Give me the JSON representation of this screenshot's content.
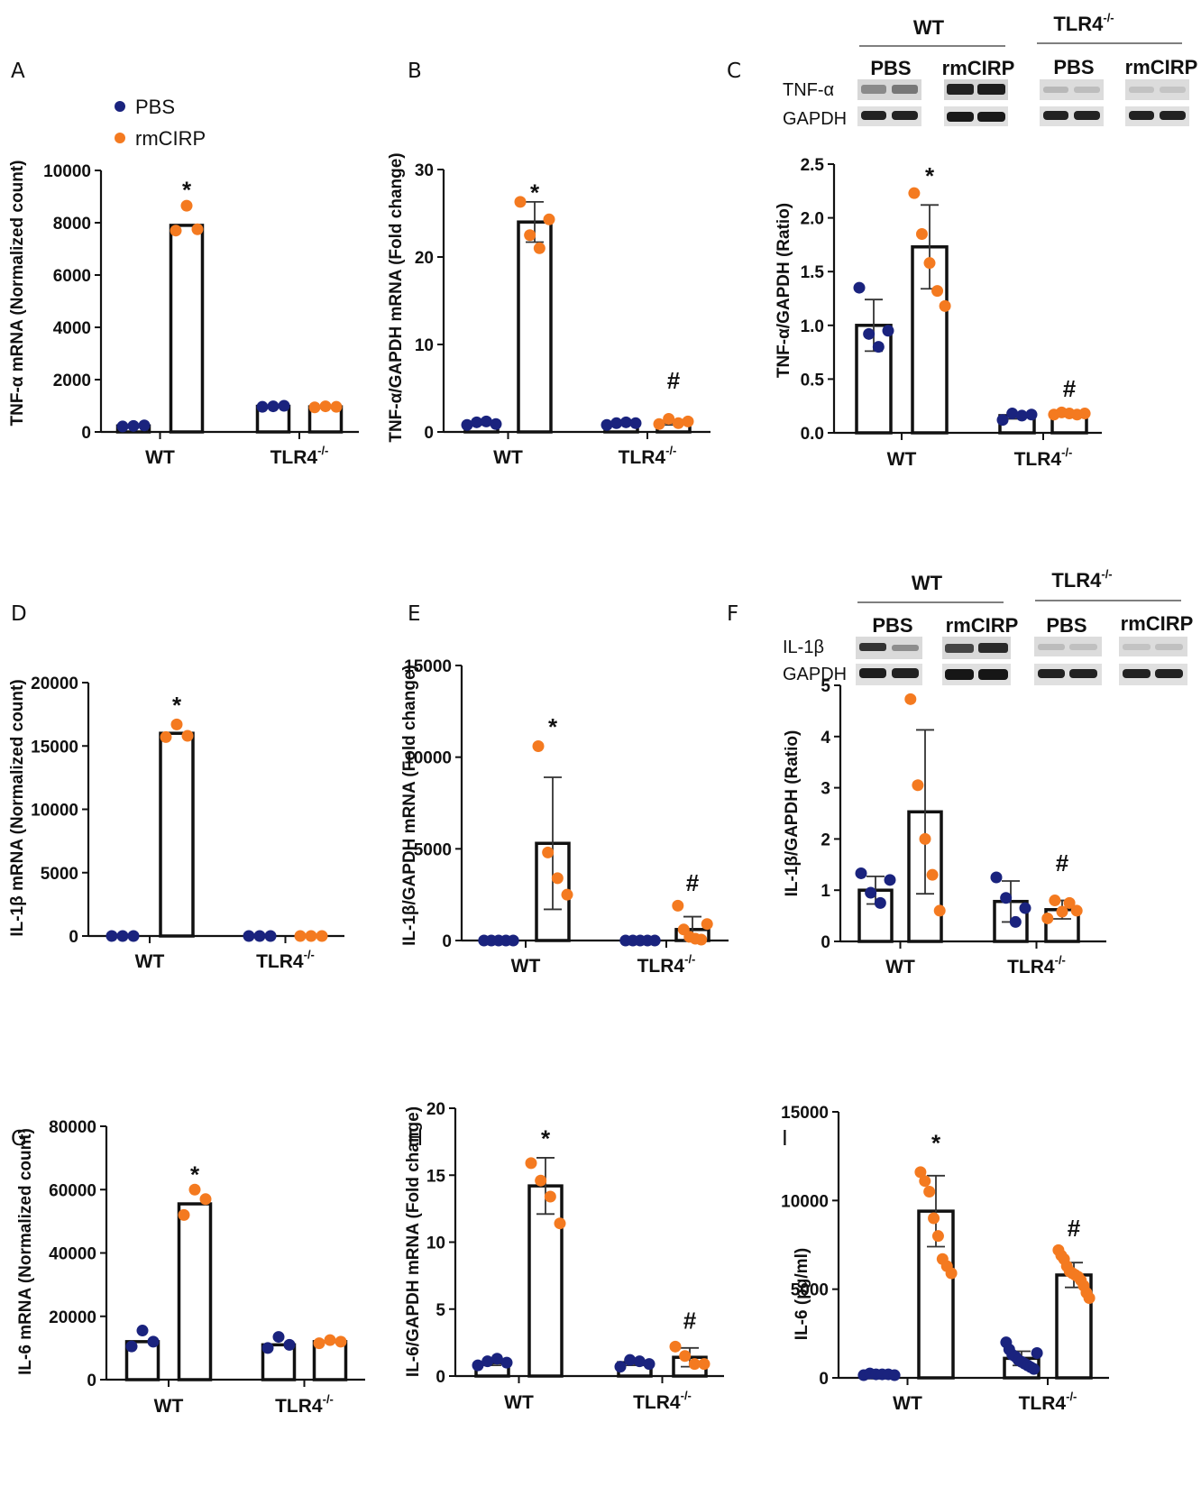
{
  "legend": {
    "pbs_label": "PBS",
    "rmcirp_label": "rmCIRP",
    "pbs_color": "#1a237e",
    "rmcirp_color": "#f47a20"
  },
  "western_blots": [
    {
      "panel": "C",
      "group_wt": "WT",
      "group_tlr4": "TLR4",
      "group_tlr4_sup": "-/-",
      "lane_labels": [
        "PBS",
        "rmCIRP",
        "PBS",
        "rmCIRP"
      ],
      "row_target": "TNF-α",
      "row_control": "GAPDH"
    },
    {
      "panel": "F",
      "group_wt": "WT",
      "group_tlr4": "TLR4",
      "group_tlr4_sup": "-/-",
      "lane_labels": [
        "PBS",
        "rmCIRP",
        "PBS",
        "rmCIRP"
      ],
      "row_target": "IL-1β",
      "row_control": "GAPDH"
    }
  ],
  "chart_data": [
    {
      "panel": "A",
      "type": "bar",
      "ylabel": "TNF-α mRNA (Normalized count)",
      "ylim": [
        0,
        10000
      ],
      "yticks": [
        "0",
        "2000",
        "4000",
        "6000",
        "8000",
        "10000"
      ],
      "categories": [
        "WT",
        "TLR4"
      ],
      "category_sup": [
        "",
        "-/-"
      ],
      "series": [
        {
          "name": "PBS",
          "values": [
            230,
            980
          ],
          "points": [
            [
              210,
              230,
              250
            ],
            [
              960,
              980,
              1000
            ]
          ],
          "error": [
            0,
            0
          ]
        },
        {
          "name": "rmCIRP",
          "values": [
            7900,
            960
          ],
          "points": [
            [
              7700,
              8650,
              7750
            ],
            [
              940,
              980,
              960
            ]
          ],
          "error": [
            0,
            0
          ]
        }
      ],
      "annotations": [
        {
          "text": "*",
          "series": "rmCIRP",
          "category": 0,
          "value": 9300
        }
      ]
    },
    {
      "panel": "B",
      "type": "bar",
      "ylabel": "TNF-α/GAPDH mRNA (Fold change)",
      "ylim": [
        0,
        30
      ],
      "yticks": [
        "0",
        "10",
        "20",
        "30"
      ],
      "categories": [
        "WT",
        "TLR4"
      ],
      "category_sup": [
        "",
        "-/-"
      ],
      "series": [
        {
          "name": "PBS",
          "values": [
            1.0,
            1.0
          ],
          "points": [
            [
              0.8,
              1.1,
              1.2,
              0.9
            ],
            [
              0.8,
              1.0,
              1.1,
              1.0
            ]
          ],
          "error": [
            0.2,
            0.15
          ]
        },
        {
          "name": "rmCIRP",
          "values": [
            24.0,
            1.1
          ],
          "points": [
            [
              26.3,
              22.5,
              21.0,
              24.3
            ],
            [
              0.9,
              1.5,
              1.0,
              1.2
            ]
          ],
          "error": [
            2.3,
            0.3
          ]
        }
      ],
      "annotations": [
        {
          "text": "*",
          "series": "rmCIRP",
          "category": 0,
          "value": 27.5
        },
        {
          "text": "#",
          "series": "rmCIRP",
          "category": 1,
          "value": 6.0
        }
      ]
    },
    {
      "panel": "C",
      "type": "bar",
      "ylabel": "TNF-α/GAPDH (Ratio)",
      "ylim": [
        0,
        2.5
      ],
      "yticks": [
        "0.0",
        "0.5",
        "1.0",
        "1.5",
        "2.0",
        "2.5"
      ],
      "categories": [
        "WT",
        "TLR4"
      ],
      "category_sup": [
        "",
        "-/-"
      ],
      "series": [
        {
          "name": "PBS",
          "values": [
            1.0,
            0.16
          ],
          "points": [
            [
              1.35,
              0.92,
              0.8,
              0.95
            ],
            [
              0.12,
              0.18,
              0.16,
              0.17
            ]
          ],
          "error": [
            0.24,
            0.03
          ]
        },
        {
          "name": "rmCIRP",
          "values": [
            1.73,
            0.18
          ],
          "points": [
            [
              2.23,
              1.85,
              1.58,
              1.32,
              1.18
            ],
            [
              0.17,
              0.19,
              0.18,
              0.17,
              0.18
            ]
          ],
          "error": [
            0.39,
            0.02
          ]
        }
      ],
      "annotations": [
        {
          "text": "*",
          "series": "rmCIRP",
          "category": 0,
          "value": 2.4
        },
        {
          "text": "#",
          "series": "rmCIRP",
          "category": 1,
          "value": 0.42
        }
      ]
    },
    {
      "panel": "D",
      "type": "bar",
      "ylabel": "IL-1β mRNA (Normalized count)",
      "ylim": [
        0,
        20000
      ],
      "yticks": [
        "0",
        "5000",
        "10000",
        "15000",
        "20000"
      ],
      "categories": [
        "WT",
        "TLR4"
      ],
      "category_sup": [
        "",
        "-/-"
      ],
      "series": [
        {
          "name": "PBS",
          "values": [
            0,
            0
          ],
          "points": [
            [
              0,
              0,
              0
            ],
            [
              0,
              0,
              0
            ]
          ],
          "error": [
            0,
            0
          ]
        },
        {
          "name": "rmCIRP",
          "values": [
            16000,
            0
          ],
          "points": [
            [
              15700,
              16700,
              15800
            ],
            [
              0,
              0,
              0
            ]
          ],
          "error": [
            0,
            0
          ]
        }
      ],
      "annotations": [
        {
          "text": "*",
          "series": "rmCIRP",
          "category": 0,
          "value": 18300
        }
      ]
    },
    {
      "panel": "E",
      "type": "bar",
      "ylabel": "IL-1β/GAPDH mRNA (Fold change)",
      "ylim": [
        0,
        15000
      ],
      "yticks": [
        "0",
        "5000",
        "10000",
        "15000"
      ],
      "categories": [
        "WT",
        "TLR4"
      ],
      "category_sup": [
        "",
        "-/-"
      ],
      "series": [
        {
          "name": "PBS",
          "values": [
            0,
            0
          ],
          "points": [
            [
              0,
              0,
              0,
              0,
              0
            ],
            [
              0,
              0,
              0,
              0,
              0
            ]
          ],
          "error": [
            0,
            0
          ]
        },
        {
          "name": "rmCIRP",
          "values": [
            5300,
            600
          ],
          "points": [
            [
              10600,
              4800,
              3400,
              2500
            ],
            [
              1900,
              600,
              200,
              100,
              50,
              900
            ]
          ],
          "error": [
            3600,
            700
          ]
        }
      ],
      "annotations": [
        {
          "text": "*",
          "series": "rmCIRP",
          "category": 0,
          "value": 11700
        },
        {
          "text": "#",
          "series": "rmCIRP",
          "category": 1,
          "value": 3200
        }
      ]
    },
    {
      "panel": "F",
      "type": "bar",
      "ylabel": "IL-1β/GAPDH (Ratio)",
      "ylim": [
        0,
        5
      ],
      "yticks": [
        "0",
        "1",
        "2",
        "3",
        "4",
        "5"
      ],
      "categories": [
        "WT",
        "TLR4"
      ],
      "category_sup": [
        "",
        "-/-"
      ],
      "series": [
        {
          "name": "PBS",
          "values": [
            1.0,
            0.78
          ],
          "points": [
            [
              1.33,
              0.95,
              0.75,
              1.2
            ],
            [
              1.25,
              0.85,
              0.38,
              0.65
            ]
          ],
          "error": [
            0.27,
            0.4
          ]
        },
        {
          "name": "rmCIRP",
          "values": [
            2.53,
            0.62
          ],
          "points": [
            [
              4.73,
              3.05,
              2.0,
              1.3,
              0.6
            ],
            [
              0.45,
              0.8,
              0.58,
              0.75,
              0.6
            ]
          ],
          "error": [
            1.6,
            0.18
          ]
        }
      ],
      "annotations": [
        {
          "text": "#",
          "series": "rmCIRP",
          "category": 1,
          "value": 1.55
        }
      ]
    },
    {
      "panel": "G",
      "type": "bar",
      "ylabel": "IL-6 mRNA (Normalized count)",
      "ylim": [
        0,
        80000
      ],
      "yticks": [
        "0",
        "20000",
        "40000",
        "60000",
        "80000"
      ],
      "categories": [
        "WT",
        "TLR4"
      ],
      "category_sup": [
        "",
        "-/-"
      ],
      "series": [
        {
          "name": "PBS",
          "values": [
            12000,
            11000
          ],
          "points": [
            [
              10500,
              15500,
              12000
            ],
            [
              10000,
              13500,
              11000
            ]
          ],
          "error": [
            0,
            0
          ]
        },
        {
          "name": "rmCIRP",
          "values": [
            55500,
            12000
          ],
          "points": [
            [
              52000,
              60000,
              57000
            ],
            [
              11500,
              12500,
              12000
            ]
          ],
          "error": [
            0,
            0
          ]
        }
      ],
      "annotations": [
        {
          "text": "*",
          "series": "rmCIRP",
          "category": 0,
          "value": 65000
        }
      ]
    },
    {
      "panel": "H",
      "type": "bar",
      "ylabel": "IL-6/GAPDH mRNA (Fold change)",
      "ylim": [
        0,
        20
      ],
      "yticks": [
        "0",
        "5",
        "10",
        "15",
        "20"
      ],
      "categories": [
        "WT",
        "TLR4"
      ],
      "category_sup": [
        "",
        "-/-"
      ],
      "series": [
        {
          "name": "PBS",
          "values": [
            1.0,
            1.0
          ],
          "points": [
            [
              0.8,
              1.1,
              1.3,
              1.0
            ],
            [
              0.7,
              1.2,
              1.1,
              0.9
            ]
          ],
          "error": [
            0.2,
            0.2
          ]
        },
        {
          "name": "rmCIRP",
          "values": [
            14.2,
            1.4
          ],
          "points": [
            [
              15.9,
              14.6,
              13.4,
              11.4
            ],
            [
              2.2,
              1.5,
              0.9,
              0.9
            ]
          ],
          "error": [
            2.1,
            0.7
          ]
        }
      ],
      "annotations": [
        {
          "text": "*",
          "series": "rmCIRP",
          "category": 0,
          "value": 17.8
        },
        {
          "text": "#",
          "series": "rmCIRP",
          "category": 1,
          "value": 4.2
        }
      ]
    },
    {
      "panel": "I",
      "type": "bar",
      "ylabel": "IL-6 (pg/ml)",
      "ylim": [
        0,
        15000
      ],
      "yticks": [
        "0",
        "5000",
        "10000",
        "15000"
      ],
      "categories": [
        "WT",
        "TLR4"
      ],
      "category_sup": [
        "",
        "-/-"
      ],
      "series": [
        {
          "name": "PBS",
          "values": [
            200,
            1100
          ],
          "points": [
            [
              150,
              250,
              200,
              200,
              200,
              150
            ],
            [
              2000,
              1600,
              1300,
              1200,
              1000,
              900,
              800,
              700,
              600,
              500,
              1400
            ]
          ],
          "error": [
            50,
            400
          ]
        },
        {
          "name": "rmCIRP",
          "values": [
            9400,
            5800
          ],
          "points": [
            [
              11600,
              11100,
              10500,
              9000,
              8000,
              6700,
              6300,
              5900
            ],
            [
              7200,
              6900,
              6700,
              6300,
              6000,
              5900,
              5800,
              5700,
              5500,
              5200,
              4800,
              4500
            ]
          ],
          "error": [
            2000,
            700
          ]
        }
      ],
      "annotations": [
        {
          "text": "*",
          "series": "rmCIRP",
          "category": 0,
          "value": 13300
        },
        {
          "text": "#",
          "series": "rmCIRP",
          "category": 1,
          "value": 8500
        }
      ]
    }
  ]
}
